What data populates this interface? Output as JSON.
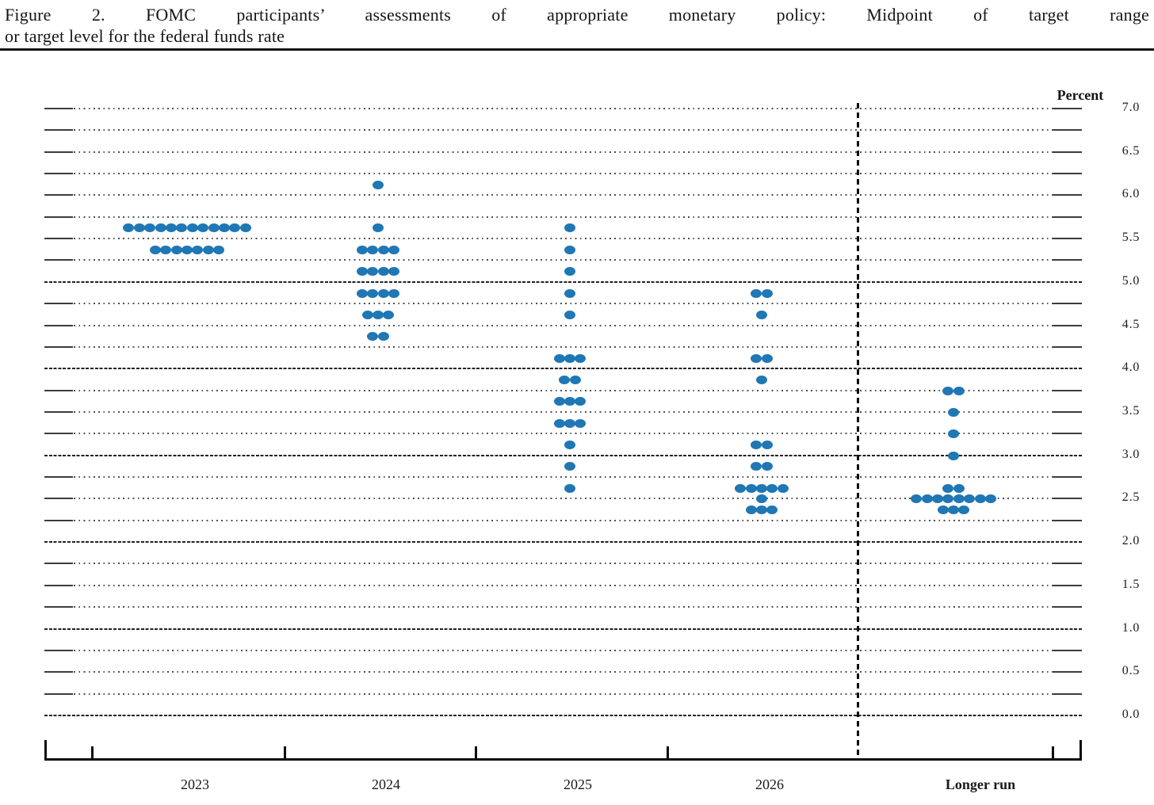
{
  "title": {
    "line1": "Figure 2.  FOMC participants’ assessments of appropriate monetary policy:  Midpoint of target range",
    "line2": "or target level for the federal funds rate"
  },
  "chart_data": {
    "type": "scatter",
    "subtype": "fomc-dot-plot",
    "title": "Figure 2. FOMC participants’ assessments of appropriate monetary policy: Midpoint of target range or target level for the federal funds rate",
    "ylabel": "Percent",
    "xlabel": "",
    "ylim": [
      0.0,
      7.0
    ],
    "y_tick_step": 0.5,
    "gridline_step": 0.25,
    "solid_gridlines_at": [
      0,
      1,
      2,
      3,
      4,
      5
    ],
    "y_tick_labels": [
      "7.0",
      "6.5",
      "6.0",
      "5.5",
      "5.0",
      "4.5",
      "4.0",
      "3.5",
      "3.0",
      "2.5",
      "2.0",
      "1.5",
      "1.0",
      "0.5",
      "0.0"
    ],
    "grid": "dotted lines every 0.25 pct; solid lines at integer percents 0-5; dashed vertical separator before Longer run",
    "legend_position": "none",
    "dot_color": "#1f77b4",
    "categories": [
      "2023",
      "2024",
      "2025",
      "2026",
      "Longer run"
    ],
    "series": [
      {
        "name": "2023",
        "dots": [
          {
            "rate": 5.625,
            "count": 12
          },
          {
            "rate": 5.375,
            "count": 7
          }
        ]
      },
      {
        "name": "2024",
        "dots": [
          {
            "rate": 6.125,
            "count": 1
          },
          {
            "rate": 5.625,
            "count": 1
          },
          {
            "rate": 5.375,
            "count": 4
          },
          {
            "rate": 5.125,
            "count": 4
          },
          {
            "rate": 4.875,
            "count": 4
          },
          {
            "rate": 4.625,
            "count": 3
          },
          {
            "rate": 4.375,
            "count": 2
          }
        ]
      },
      {
        "name": "2025",
        "dots": [
          {
            "rate": 5.625,
            "count": 1
          },
          {
            "rate": 5.375,
            "count": 1
          },
          {
            "rate": 5.125,
            "count": 1
          },
          {
            "rate": 4.875,
            "count": 1
          },
          {
            "rate": 4.625,
            "count": 1
          },
          {
            "rate": 4.125,
            "count": 3
          },
          {
            "rate": 3.875,
            "count": 2
          },
          {
            "rate": 3.625,
            "count": 3
          },
          {
            "rate": 3.375,
            "count": 3
          },
          {
            "rate": 3.125,
            "count": 1
          },
          {
            "rate": 2.875,
            "count": 1
          },
          {
            "rate": 2.625,
            "count": 1
          }
        ]
      },
      {
        "name": "2026",
        "dots": [
          {
            "rate": 4.875,
            "count": 2
          },
          {
            "rate": 4.625,
            "count": 1
          },
          {
            "rate": 4.125,
            "count": 2
          },
          {
            "rate": 3.875,
            "count": 1
          },
          {
            "rate": 3.125,
            "count": 2
          },
          {
            "rate": 2.875,
            "count": 2
          },
          {
            "rate": 2.625,
            "count": 5
          },
          {
            "rate": 2.5,
            "count": 1
          },
          {
            "rate": 2.375,
            "count": 3
          }
        ]
      },
      {
        "name": "Longer run",
        "dots": [
          {
            "rate": 3.75,
            "count": 2
          },
          {
            "rate": 3.5,
            "count": 1
          },
          {
            "rate": 3.25,
            "count": 1
          },
          {
            "rate": 3.0,
            "count": 1
          },
          {
            "rate": 2.625,
            "count": 2
          },
          {
            "rate": 2.5,
            "count": 8
          },
          {
            "rate": 2.375,
            "count": 3
          }
        ]
      }
    ]
  }
}
